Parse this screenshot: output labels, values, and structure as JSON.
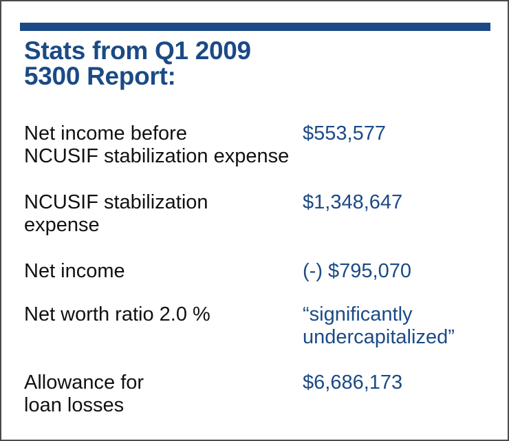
{
  "header": {
    "title": "Stats from Q1 2009\n5300 Report:"
  },
  "stats": [
    {
      "label": "Net income before\nNCUSIF stabilization expense",
      "value": "$553,577"
    },
    {
      "label": "NCUSIF stabilization\nexpense",
      "value": " $1,348,647"
    },
    {
      "label": "Net income",
      "value": "(-) $795,070"
    },
    {
      "label": "Net worth ratio 2.0 %",
      "value": "“significantly\nundercapitalized”"
    },
    {
      "label": "Allowance for\nloan losses",
      "value": "$6,686,173"
    }
  ],
  "colors": {
    "accent": "#1b4a86",
    "text": "#111111",
    "border": "#4a4a4a"
  }
}
